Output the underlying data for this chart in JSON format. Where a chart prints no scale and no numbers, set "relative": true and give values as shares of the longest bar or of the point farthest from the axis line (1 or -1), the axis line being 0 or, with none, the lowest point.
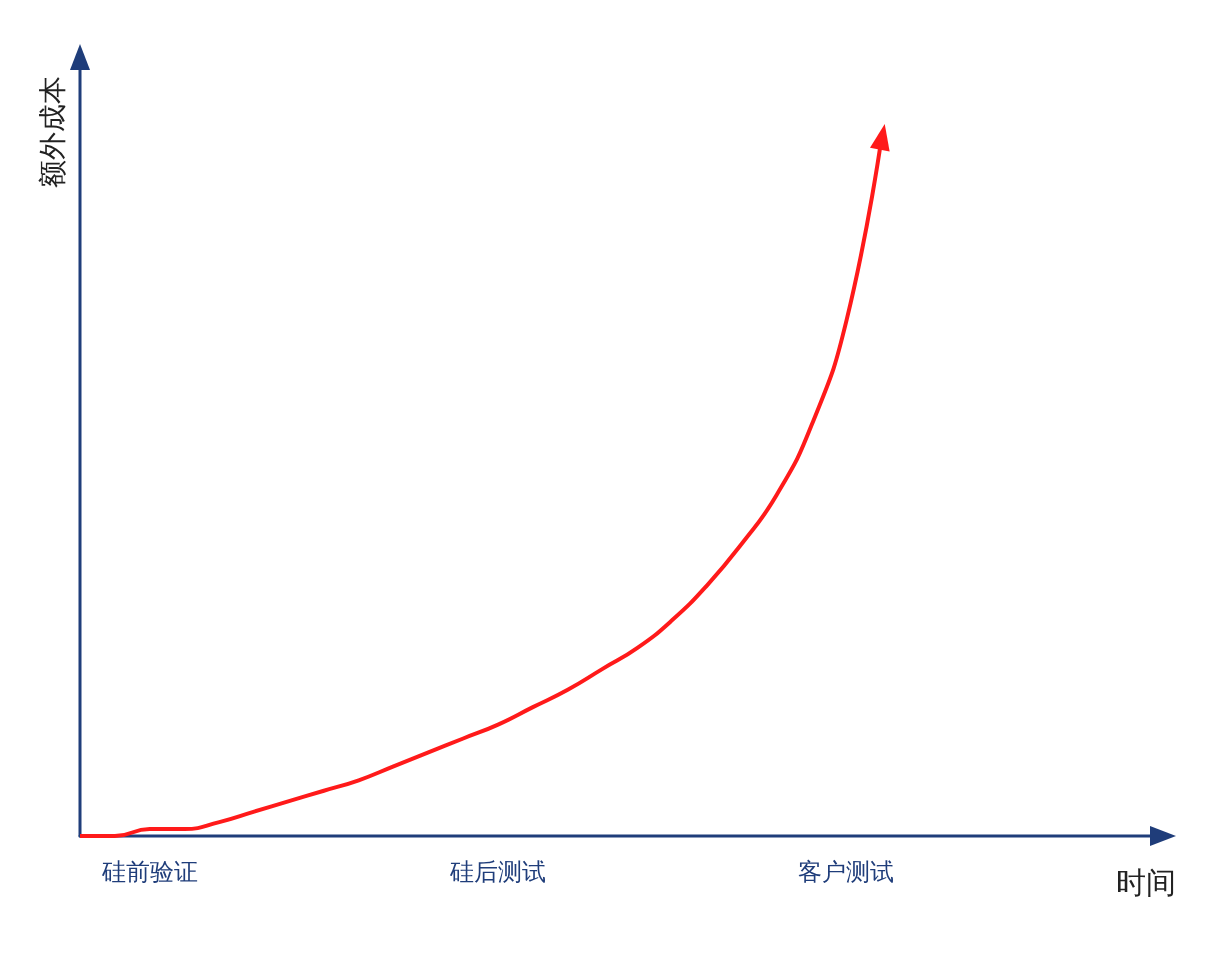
{
  "chart_data": {
    "type": "line",
    "relative": true,
    "xlabel": "时间",
    "ylabel": "额外成本",
    "categories": [
      null,
      null,
      "硅前验证",
      null,
      null,
      null,
      null,
      null,
      null,
      null,
      null,
      null,
      "硅后测试",
      null,
      null,
      null,
      null,
      null,
      null,
      null,
      null,
      null,
      "客户测试",
      null,
      null,
      null,
      null,
      null,
      null,
      null,
      null,
      null
    ],
    "series": [
      {
        "color": "#ff1a1a",
        "values": [
          0,
          0,
          0.01,
          0.01,
          0.02,
          0.035,
          0.05,
          0.065,
          0.08,
          0.1,
          0.12,
          0.14,
          0.16,
          0.185,
          0.21,
          0.24,
          0.27,
          0.31,
          0.36,
          0.42,
          0.49,
          0.59,
          0.74,
          1,
          null,
          null,
          null,
          null,
          null,
          null,
          null,
          null
        ]
      }
    ],
    "grid": false,
    "marker": "none"
  }
}
